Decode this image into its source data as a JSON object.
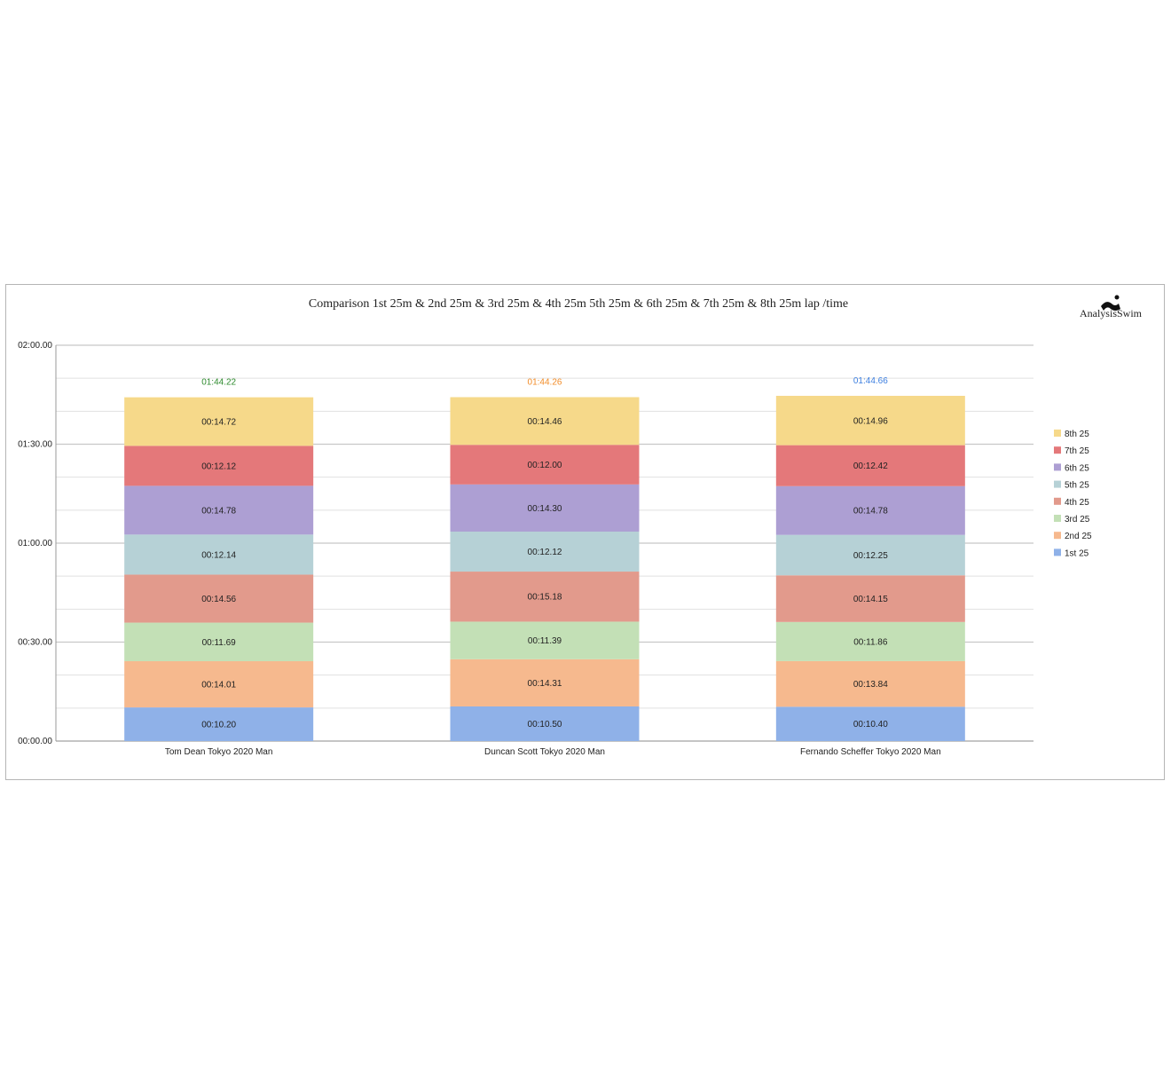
{
  "chart_data": {
    "type": "bar",
    "stacked": true,
    "title": "Comparison 1st 25m & 2nd 25m & 3rd 25m & 4th 25m 5th 25m & 6th 25m & 7th 25m & 8th 25m lap /time",
    "logo_text": "AnalysisSwim",
    "y_ticks": [
      "00:00.00",
      "00:30.00",
      "01:00.00",
      "01:30.00",
      "02:00.00"
    ],
    "ylim": [
      0,
      120
    ],
    "ylim_unit": "seconds",
    "grid": true,
    "legend_position": "right",
    "categories": [
      "Tom Dean Tokyo 2020 Man",
      "Duncan Scott Tokyo 2020 Man",
      "Fernando Scheffer Tokyo 2020 Man"
    ],
    "totals": [
      "01:44.22",
      "01:44.26",
      "01:44.66"
    ],
    "total_colors": [
      "#2e8b2e",
      "#f28c28",
      "#3d7fe0"
    ],
    "series": [
      {
        "name": "1st 25",
        "color": "#8fb1e8",
        "values": [
          10.2,
          10.5,
          10.4
        ],
        "labels": [
          "00:10.20",
          "00:10.50",
          "00:10.40"
        ]
      },
      {
        "name": "2nd 25",
        "color": "#f6b98e",
        "values": [
          14.01,
          14.31,
          13.84
        ],
        "labels": [
          "00:14.01",
          "00:14.31",
          "00:13.84"
        ]
      },
      {
        "name": "3rd 25",
        "color": "#c3e0b6",
        "values": [
          11.69,
          11.39,
          11.86
        ],
        "labels": [
          "00:11.69",
          "00:11.39",
          "00:11.86"
        ]
      },
      {
        "name": "4th 25",
        "color": "#e29a8c",
        "values": [
          14.56,
          15.18,
          14.15
        ],
        "labels": [
          "00:14.56",
          "00:15.18",
          "00:14.15"
        ]
      },
      {
        "name": "5th 25",
        "color": "#b6d1d6",
        "values": [
          12.14,
          12.12,
          12.25
        ],
        "labels": [
          "00:12.14",
          "00:12.12",
          "00:12.25"
        ]
      },
      {
        "name": "6th 25",
        "color": "#ad9fd3",
        "values": [
          14.78,
          14.3,
          14.78
        ],
        "labels": [
          "00:14.78",
          "00:14.30",
          "00:14.78"
        ]
      },
      {
        "name": "7th 25",
        "color": "#e4787a",
        "values": [
          12.12,
          12.0,
          12.42
        ],
        "labels": [
          "00:12.12",
          "00:12.00",
          "00:12.42"
        ]
      },
      {
        "name": "8th 25",
        "color": "#f6d98a",
        "values": [
          14.72,
          14.46,
          14.96
        ],
        "labels": [
          "00:14.72",
          "00:14.46",
          "00:14.96"
        ]
      }
    ]
  }
}
